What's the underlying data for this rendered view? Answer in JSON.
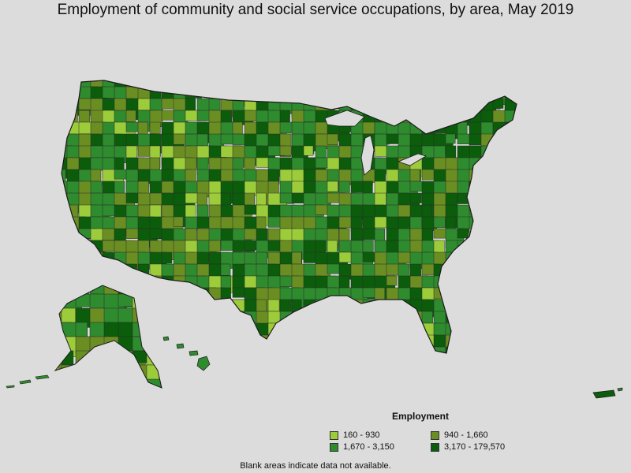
{
  "title": "Employment of community and social service occupations, by area, May 2019",
  "legend": {
    "title": "Employment",
    "items": [
      {
        "label": "160 - 930",
        "color": "#9ccc3a"
      },
      {
        "label": "940 - 1,660",
        "color": "#6b8e23"
      },
      {
        "label": "1,670 - 3,150",
        "color": "#2e8b2e"
      },
      {
        "label": "3,170 - 179,570",
        "color": "#0b5d0b"
      }
    ]
  },
  "footnote": "Blank areas indicate data not available.",
  "colors": {
    "background": "#dcdcdc",
    "border": "#2b2b2b"
  }
}
